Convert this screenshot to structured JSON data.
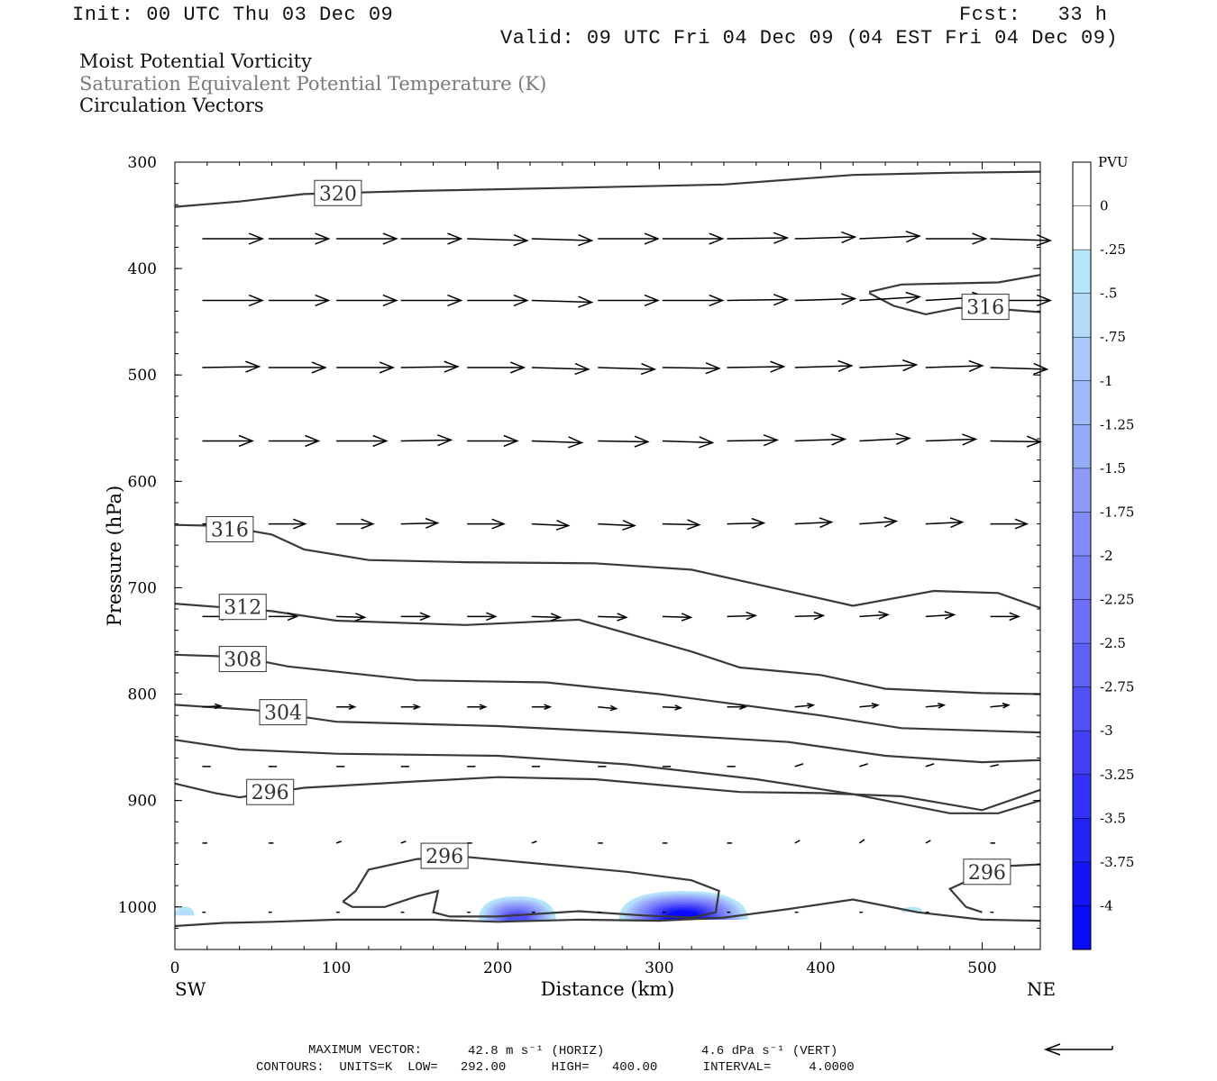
{
  "header": {
    "init": "Init: 00 UTC Thu 03 Dec 09",
    "fcst": "Fcst:   33 h",
    "valid": "Valid: 09 UTC Fri 04 Dec 09 (04 EST Fri 04 Dec 09)",
    "line1": "Moist Potential Vorticity",
    "line2": "Saturation Equivalent Potential Temperature (K)",
    "line3": "Circulation Vectors"
  },
  "footer": {
    "max_vector_label": "MAXIMUM VECTOR:",
    "max_horiz": "42.8 m s⁻¹ (HORIZ)",
    "max_vert": "4.6 dPa s⁻¹ (VERT)",
    "contours": "CONTOURS:  UNITS=K  LOW=   292.00      HIGH=   400.00      INTERVAL=     4.0000"
  },
  "chart_data": {
    "type": "cross-section",
    "xlabel": "Distance (km)",
    "ylabel": "Pressure (hPa)",
    "x_left_label": "SW",
    "x_right_label": "NE",
    "xlim": [
      0,
      536
    ],
    "ylim": [
      300,
      1040
    ],
    "x_ticks": [
      0,
      100,
      200,
      300,
      400,
      500
    ],
    "y_ticks": [
      300,
      400,
      500,
      600,
      700,
      800,
      900,
      1000
    ],
    "colorbar": {
      "title": "PVU",
      "labels": [
        "0",
        "-.25",
        "-.5",
        "-.75",
        "-1",
        "-1.25",
        "-1.5",
        "-1.75",
        "-2",
        "-2.25",
        "-2.5",
        "-2.75",
        "-3",
        "-3.25",
        "-3.5",
        "-3.75",
        "-4"
      ],
      "colors": [
        "#ffffff",
        "#ffffff",
        "#b4e6fa",
        "#b4dcfa",
        "#aac8fa",
        "#a0b9fa",
        "#96aafa",
        "#8c9bfa",
        "#828cfa",
        "#787dfa",
        "#6e6efa",
        "#5f5ffa",
        "#5050fa",
        "#4141fa",
        "#3232fa",
        "#2323fa",
        "#1414fa",
        "#0a0afa"
      ]
    },
    "contours": [
      {
        "label": "320",
        "label_at": [
          101,
          329
        ],
        "points": [
          [
            0,
            342
          ],
          [
            40,
            337
          ],
          [
            80,
            330
          ],
          [
            150,
            327
          ],
          [
            250,
            324
          ],
          [
            340,
            321
          ],
          [
            420,
            312
          ],
          [
            480,
            310
          ],
          [
            536,
            309
          ]
        ]
      },
      {
        "label": "316",
        "label_at": [
          502,
          436
        ],
        "points": [
          [
            430,
            422
          ],
          [
            450,
            415
          ],
          [
            480,
            414
          ],
          [
            510,
            413
          ],
          [
            536,
            406
          ]
        ]
      },
      {
        "label": "316",
        "label_at": [
          502,
          436
        ],
        "points": [
          [
            430,
            423
          ],
          [
            445,
            435
          ],
          [
            465,
            443
          ],
          [
            485,
            437
          ],
          [
            510,
            438
          ],
          [
            536,
            441
          ]
        ]
      },
      {
        "label": "316",
        "label_at": [
          34,
          645
        ],
        "points": [
          [
            0,
            641
          ],
          [
            30,
            642
          ],
          [
            60,
            650
          ],
          [
            80,
            664
          ],
          [
            120,
            674
          ],
          [
            180,
            676
          ],
          [
            260,
            677
          ],
          [
            320,
            683
          ],
          [
            370,
            700
          ],
          [
            420,
            717
          ],
          [
            470,
            703
          ],
          [
            510,
            705
          ],
          [
            536,
            719
          ]
        ]
      },
      {
        "label": "312",
        "label_at": [
          42,
          718
        ],
        "points": [
          [
            0,
            715
          ],
          [
            60,
            722
          ],
          [
            100,
            731
          ],
          [
            180,
            735
          ],
          [
            250,
            730
          ],
          [
            320,
            760
          ],
          [
            350,
            775
          ],
          [
            400,
            782
          ],
          [
            440,
            795
          ],
          [
            500,
            799
          ],
          [
            536,
            800
          ]
        ]
      },
      {
        "label": "308",
        "label_at": [
          42,
          767
        ],
        "points": [
          [
            0,
            763
          ],
          [
            40,
            765
          ],
          [
            70,
            774
          ],
          [
            150,
            787
          ],
          [
            230,
            789
          ],
          [
            300,
            800
          ],
          [
            400,
            820
          ],
          [
            450,
            832
          ],
          [
            536,
            836
          ]
        ]
      },
      {
        "label": "304",
        "label_at": [
          67,
          817
        ],
        "points": [
          [
            0,
            810
          ],
          [
            50,
            815
          ],
          [
            100,
            826
          ],
          [
            200,
            830
          ],
          [
            280,
            836
          ],
          [
            380,
            845
          ],
          [
            440,
            858
          ],
          [
            500,
            864
          ],
          [
            536,
            862
          ]
        ]
      },
      {
        "label": "",
        "label_at": null,
        "points": [
          [
            0,
            843
          ],
          [
            40,
            852
          ],
          [
            100,
            856
          ],
          [
            200,
            858
          ],
          [
            280,
            866
          ],
          [
            360,
            880
          ],
          [
            420,
            894
          ],
          [
            480,
            912
          ],
          [
            510,
            912
          ],
          [
            536,
            900
          ]
        ]
      },
      {
        "label": "296",
        "label_at": [
          59,
          892
        ],
        "points": [
          [
            0,
            884
          ],
          [
            25,
            893
          ],
          [
            40,
            897
          ],
          [
            80,
            888
          ],
          [
            150,
            882
          ],
          [
            200,
            878
          ],
          [
            260,
            880
          ],
          [
            350,
            892
          ],
          [
            400,
            893
          ],
          [
            450,
            896
          ],
          [
            500,
            909
          ],
          [
            536,
            890
          ]
        ]
      },
      {
        "label": "296",
        "label_at": [
          167,
          952
        ],
        "points": [
          [
            104,
            995
          ],
          [
            112,
            985
          ],
          [
            120,
            965
          ],
          [
            150,
            955
          ],
          [
            180,
            953
          ],
          [
            230,
            960
          ],
          [
            280,
            967
          ],
          [
            320,
            975
          ],
          [
            337,
            985
          ],
          [
            335,
            1005
          ],
          [
            320,
            1010
          ],
          [
            290,
            1008
          ],
          [
            250,
            1004
          ],
          [
            200,
            1009
          ],
          [
            170,
            1009
          ],
          [
            160,
            1005
          ],
          [
            163,
            985
          ],
          [
            150,
            990
          ],
          [
            130,
            1000
          ],
          [
            110,
            1000
          ],
          [
            104,
            995
          ]
        ]
      },
      {
        "label": "296",
        "label_at": [
          503,
          967
        ],
        "points": [
          [
            536,
            960
          ],
          [
            510,
            962
          ],
          [
            480,
            983
          ],
          [
            490,
            1000
          ],
          [
            500,
            1005
          ]
        ]
      },
      {
        "label": "",
        "label_at": null,
        "points": [
          [
            0,
            1018
          ],
          [
            30,
            1015
          ],
          [
            60,
            1014
          ],
          [
            100,
            1012
          ],
          [
            160,
            1012
          ],
          [
            200,
            1014
          ],
          [
            250,
            1012
          ],
          [
            300,
            1013
          ],
          [
            340,
            1010
          ],
          [
            380,
            1002
          ],
          [
            420,
            993
          ],
          [
            460,
            1005
          ],
          [
            500,
            1012
          ],
          [
            536,
            1013
          ]
        ]
      }
    ],
    "pv_patches": [
      {
        "x_range": [
          188,
          236
        ],
        "top": 990,
        "bottom": 1013,
        "min_pvu": -2.75
      },
      {
        "x_range": [
          275,
          355
        ],
        "top": 985,
        "bottom": 1012,
        "min_pvu": -4
      },
      {
        "x_range": [
          0,
          12
        ],
        "top": 1000,
        "bottom": 1008,
        "min_pvu": -0.5
      },
      {
        "x_range": [
          450,
          463
        ],
        "top": 1000,
        "bottom": 1005,
        "min_pvu": -0.25
      }
    ],
    "vector_rows": [
      {
        "p": 372,
        "u": 36,
        "w": [
          0,
          0,
          0,
          0,
          -2,
          -2,
          0,
          0,
          1,
          2,
          3,
          0,
          -2
        ]
      },
      {
        "p": 430,
        "u": 36,
        "w": [
          0,
          0,
          0,
          0,
          0,
          -2,
          0,
          0,
          1,
          2,
          4,
          4,
          0
        ]
      },
      {
        "p": 493,
        "u": 34,
        "w": [
          1,
          0,
          0,
          1,
          0,
          -2,
          -2,
          -1,
          1,
          2,
          3,
          2,
          -2
        ]
      },
      {
        "p": 562,
        "u": 30,
        "w": [
          0,
          0,
          0,
          1,
          0,
          -2,
          -1,
          -2,
          1,
          2,
          3,
          2,
          -1
        ]
      },
      {
        "p": 640,
        "u": 22,
        "w": [
          0,
          0,
          0,
          1,
          0,
          -2,
          -2,
          -1,
          1,
          2,
          3,
          2,
          0
        ]
      },
      {
        "p": 727,
        "u": 17,
        "w": [
          0,
          0,
          -1,
          0,
          0,
          -1,
          -1,
          -1,
          1,
          1,
          2,
          2,
          0
        ]
      },
      {
        "p": 812,
        "u": 11,
        "w": [
          1,
          0,
          0,
          0,
          0,
          0,
          -2,
          -1,
          0,
          2,
          2,
          2,
          2
        ]
      },
      {
        "p": 868,
        "u": 5,
        "w": [
          0,
          0,
          0,
          0,
          0,
          0,
          0,
          0,
          0,
          3,
          3,
          3,
          2
        ]
      },
      {
        "p": 940,
        "u": 3,
        "w": [
          0,
          0,
          2,
          2,
          0,
          2,
          0,
          0,
          0,
          3,
          4,
          3,
          0
        ]
      },
      {
        "p": 1005,
        "u": 2,
        "w": [
          0,
          0,
          0,
          0,
          0,
          0,
          0,
          0,
          0,
          0,
          0,
          0,
          0
        ]
      }
    ],
    "vector_x": [
      17,
      58,
      100,
      140,
      181,
      221,
      262,
      302,
      342,
      384,
      424,
      465,
      505
    ]
  }
}
